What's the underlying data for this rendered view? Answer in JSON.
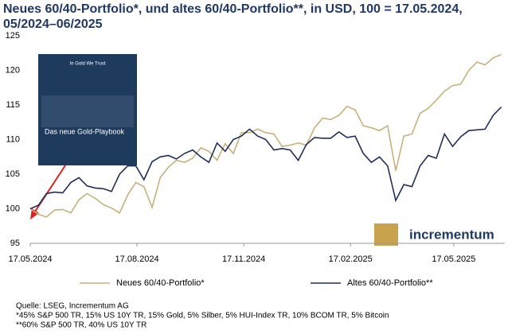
{
  "chart_data": {
    "type": "line",
    "title": "Neues 60/40-Portfolio*, und altes 60/40-Portfolio**, in USD, 100 = 17.05.2024, 05/2024–06/2025",
    "x": [
      "2024-05-17",
      "2024-05-24",
      "2024-05-31",
      "2024-06-07",
      "2024-06-14",
      "2024-06-21",
      "2024-06-28",
      "2024-07-05",
      "2024-07-12",
      "2024-07-19",
      "2024-07-26",
      "2024-08-02",
      "2024-08-09",
      "2024-08-16",
      "2024-08-23",
      "2024-08-30",
      "2024-09-06",
      "2024-09-13",
      "2024-09-20",
      "2024-09-27",
      "2024-10-04",
      "2024-10-11",
      "2024-10-18",
      "2024-10-25",
      "2024-11-01",
      "2024-11-08",
      "2024-11-15",
      "2024-11-22",
      "2024-11-29",
      "2024-12-06",
      "2024-12-13",
      "2024-12-20",
      "2024-12-27",
      "2025-01-03",
      "2025-01-10",
      "2025-01-17",
      "2025-01-24",
      "2025-01-31",
      "2025-02-07",
      "2025-02-14",
      "2025-02-21",
      "2025-02-28",
      "2025-03-07",
      "2025-03-14",
      "2025-03-21",
      "2025-03-28",
      "2025-04-04",
      "2025-04-11",
      "2025-04-18",
      "2025-04-25",
      "2025-05-02",
      "2025-05-09",
      "2025-05-16",
      "2025-05-23",
      "2025-05-30",
      "2025-06-06",
      "2025-06-13",
      "2025-06-20",
      "2025-06-27"
    ],
    "series": [
      {
        "name": "Neues 60/40-Portfolio*",
        "color": "#c8b07a",
        "values": [
          100,
          99.2,
          98.8,
          99.8,
          99.9,
          99.4,
          101.3,
          102.2,
          101.5,
          100.6,
          100.1,
          99.4,
          102,
          103.8,
          103.2,
          100.2,
          104.5,
          106,
          107,
          106.7,
          107.3,
          108.8,
          108.3,
          107,
          109.4,
          108,
          111,
          111,
          111.5,
          111,
          110.8,
          109,
          109.2,
          109.5,
          109.2,
          111.7,
          113.1,
          112.9,
          113.5,
          114.8,
          114.3,
          112,
          111.7,
          111.3,
          112,
          105.5,
          110.5,
          110.8,
          113.8,
          114.5,
          115.7,
          117,
          117.8,
          118,
          120,
          121.2,
          120.8,
          121.8,
          122.3
        ]
      },
      {
        "name": "Altes 60/40-Portfolio**",
        "color": "#1f2f5a",
        "values": [
          100,
          100.5,
          102.2,
          102.4,
          102.3,
          103.8,
          104.5,
          103.3,
          103,
          102.9,
          102.5,
          105,
          106.2,
          106.2,
          104.2,
          106.8,
          107.5,
          107.7,
          107.2,
          108,
          108.5,
          107.5,
          106.7,
          109.5,
          108.3,
          110,
          110.5,
          111.5,
          110.5,
          110,
          108.5,
          108.7,
          108.5,
          107,
          109.3,
          110.3,
          110.2,
          110.2,
          111.1,
          110.3,
          110.5,
          108,
          106.7,
          107.5,
          106.2,
          101.2,
          103.5,
          103.2,
          106.2,
          107.7,
          107.3,
          110.8,
          109,
          110.4,
          111.3,
          111.4,
          111.5,
          113.5,
          114.7
        ]
      }
    ],
    "xlim": [
      "2024-05-17",
      "2025-06-30"
    ],
    "xticks": [
      {
        "value": "2024-05-17",
        "label": "17.05.2024"
      },
      {
        "value": "2024-08-17",
        "label": "17.08.2024"
      },
      {
        "value": "2024-11-17",
        "label": "17.11.2024"
      },
      {
        "value": "2025-02-17",
        "label": "17.02.2025"
      },
      {
        "value": "2025-05-17",
        "label": "17.05.2025"
      }
    ],
    "ylim": [
      95,
      125
    ],
    "yticks": [
      95,
      100,
      105,
      110,
      115,
      120,
      125
    ],
    "grid": false,
    "legend": "bottom",
    "notes": [
      "Quelle: LSEG, Incrementum AG",
      "*45% S&P 500 TR, 15% US 10Y TR, 15% Gold, 5% Silber, 5% HUI-Index TR, 10% BCOM TR, 5% Bitcoin",
      "**60% S&P 500 TR, 40% US 10Y TR"
    ],
    "image_text": {
      "header": "In Gold We Trust",
      "title": "Das neue Gold-Playbook"
    },
    "logo": "incrementum"
  }
}
